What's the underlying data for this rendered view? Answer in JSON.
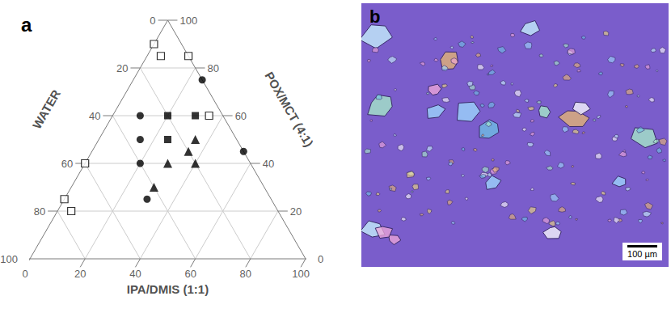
{
  "chart_data": {
    "type": "ternary",
    "panel_label": "a",
    "grid": true,
    "axes": [
      {
        "title": "WATER",
        "lim": [
          0,
          100
        ],
        "ticks": [
          0,
          20,
          40,
          60,
          80,
          100
        ]
      },
      {
        "title": "IPA/DMIS (1:1)",
        "lim": [
          0,
          100
        ],
        "ticks": [
          0,
          20,
          40,
          60,
          80,
          100
        ]
      },
      {
        "title": "POX/MCT (4:1)",
        "lim": [
          0,
          100
        ],
        "ticks": [
          0,
          20,
          40,
          60,
          80,
          100
        ]
      }
    ],
    "series": [
      {
        "marker": "open_square",
        "color": "#000000",
        "values": [
          [
            10,
            0,
            90
          ],
          [
            10,
            5,
            85
          ],
          [
            0,
            15,
            85
          ],
          [
            5,
            35,
            60
          ],
          [
            60,
            0,
            40
          ],
          [
            75,
            0,
            25
          ],
          [
            75,
            5,
            20
          ]
        ]
      },
      {
        "marker": "filled_circle",
        "color": "#000000",
        "values": [
          [
            0,
            25,
            75
          ],
          [
            30,
            10,
            60
          ],
          [
            35,
            15,
            50
          ],
          [
            40,
            20,
            40
          ],
          [
            0,
            55,
            45
          ],
          [
            45,
            30,
            25
          ]
        ]
      },
      {
        "marker": "filled_square",
        "color": "#000000",
        "values": [
          [
            20,
            20,
            60
          ],
          [
            10,
            30,
            60
          ],
          [
            25,
            25,
            50
          ]
        ]
      },
      {
        "marker": "filled_triangle",
        "color": "#000000",
        "values": [
          [
            15,
            35,
            50
          ],
          [
            30,
            30,
            40
          ],
          [
            20,
            40,
            40
          ],
          [
            20,
            35,
            45
          ],
          [
            40,
            30,
            30
          ]
        ]
      }
    ]
  },
  "image": {
    "panel_label": "b",
    "scale_bar": "100 µm"
  }
}
